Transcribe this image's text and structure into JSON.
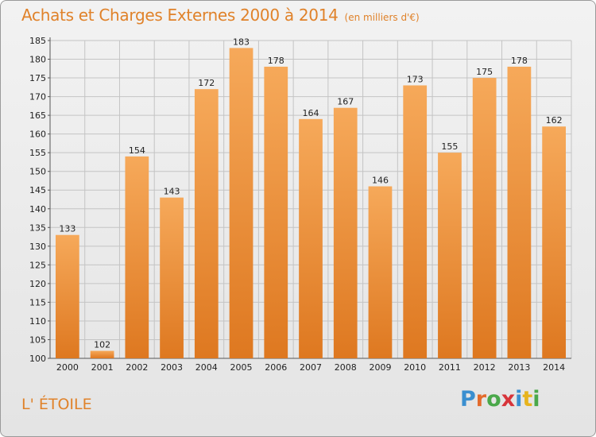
{
  "title": "Achats et Charges Externes 2000 à 2014",
  "unit": "(en milliers d'€)",
  "place": "L' ÉTOILE",
  "logo": {
    "letters": [
      "P",
      "r",
      "o",
      "x",
      "i",
      "t",
      "i"
    ],
    "colors": [
      "#3a8fd0",
      "#e36b2c",
      "#4aa84a",
      "#d7343a",
      "#3a8fd0",
      "#e7b41e",
      "#4aa84a"
    ]
  },
  "colors": {
    "bar_light": "#f6a95a",
    "bar_dark": "#de7820",
    "title": "#e0822a"
  },
  "chart_data": {
    "type": "bar",
    "categories": [
      "2000",
      "2001",
      "2002",
      "2003",
      "2004",
      "2005",
      "2006",
      "2007",
      "2008",
      "2009",
      "2010",
      "2011",
      "2012",
      "2013",
      "2014"
    ],
    "values": [
      133,
      102,
      154,
      143,
      172,
      183,
      178,
      164,
      167,
      146,
      173,
      155,
      175,
      178,
      162
    ],
    "ylim": [
      100,
      185
    ],
    "yticks": [
      100,
      105,
      110,
      115,
      120,
      125,
      130,
      135,
      140,
      145,
      150,
      155,
      160,
      165,
      170,
      175,
      180,
      185
    ],
    "grid": true
  }
}
